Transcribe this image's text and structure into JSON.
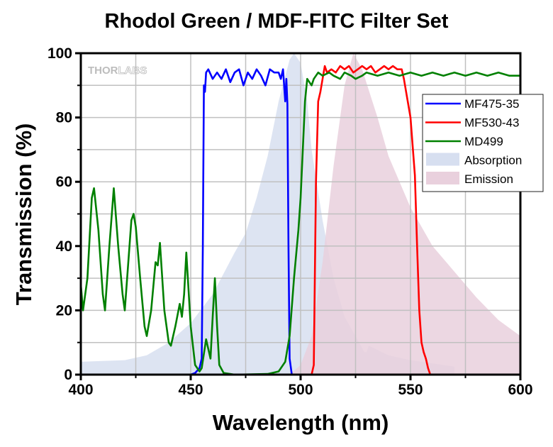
{
  "chart_data": {
    "type": "line",
    "title": "Rhodol Green / MDF-FITC Filter Set",
    "xlabel": "Wavelength (nm)",
    "ylabel": "Transmission (%)",
    "xlim": [
      400,
      600
    ],
    "ylim": [
      0,
      100
    ],
    "xticks": [
      400,
      450,
      500,
      550,
      600
    ],
    "yticks": [
      0,
      20,
      40,
      60,
      80,
      100
    ],
    "grid": true,
    "legend_position": "right",
    "watermark": [
      "THOR",
      "LABS"
    ],
    "series": [
      {
        "name": "Absorption",
        "kind": "area",
        "color": "#d7dff0",
        "x": [
          400,
          420,
          430,
          440,
          450,
          460,
          470,
          475,
          480,
          485,
          490,
          495,
          497,
          500,
          503,
          505,
          510,
          515,
          520,
          525,
          529,
          530,
          531,
          540,
          550,
          560,
          570
        ],
        "y": [
          4,
          4.5,
          6,
          10,
          16,
          25,
          38,
          44,
          55,
          68,
          85,
          98,
          100,
          97,
          85,
          70,
          48,
          30,
          18,
          12,
          7,
          7,
          9,
          6,
          4.5,
          3.5,
          2.5
        ]
      },
      {
        "name": "Emission",
        "kind": "area",
        "color": "#e9d0dd",
        "x": [
          495,
          500,
          505,
          510,
          515,
          520,
          524,
          528,
          535,
          540,
          550,
          560,
          570,
          580,
          590,
          600
        ],
        "y": [
          0,
          3,
          12,
          35,
          65,
          90,
          100,
          95,
          80,
          68,
          52,
          40,
          32,
          24,
          17,
          12
        ]
      },
      {
        "name": "MF475-35",
        "kind": "line",
        "color": "#0000ff",
        "x": [
          400,
          450,
          452,
          454,
          455,
          455.5,
          456,
          456.5,
          457,
          458,
          460,
          462,
          464,
          466,
          468,
          470,
          472,
          474,
          476,
          478,
          480,
          482,
          484,
          486,
          488,
          490,
          491,
          492,
          493,
          493.5,
          494,
          494.5,
          495,
          496,
          600
        ],
        "y": [
          0,
          0,
          0.5,
          2,
          5,
          40,
          90,
          88,
          94,
          95,
          92,
          94,
          92,
          95,
          91,
          94,
          95,
          90,
          94,
          92,
          95,
          93,
          90,
          95,
          94,
          94,
          92,
          95,
          85,
          92,
          84,
          40,
          5,
          0,
          0
        ]
      },
      {
        "name": "MF530-43",
        "kind": "line",
        "color": "#ff0000",
        "x": [
          400,
          505,
          506,
          507,
          508,
          509,
          510,
          511,
          512,
          514,
          516,
          518,
          520,
          522,
          524,
          526,
          528,
          530,
          532,
          534,
          536,
          538,
          540,
          542,
          544,
          546,
          547,
          548,
          550,
          552,
          553,
          554,
          555,
          556,
          557,
          558,
          559,
          600
        ],
        "y": [
          0,
          0,
          3,
          60,
          85,
          88,
          92,
          96,
          94,
          95,
          94,
          96,
          95,
          96,
          94,
          95,
          96,
          95,
          96,
          94,
          95,
          96,
          95,
          96,
          95,
          95,
          92,
          88,
          80,
          62,
          40,
          20,
          10,
          7,
          5,
          2,
          0,
          0
        ]
      },
      {
        "name": "MD499",
        "kind": "line",
        "color": "#008000",
        "x": [
          400,
          401,
          403,
          405,
          406,
          408,
          410,
          411,
          413,
          415,
          417,
          419,
          420,
          423,
          424,
          425,
          427,
          429,
          430,
          432,
          434,
          435,
          436,
          438,
          440,
          441,
          443,
          445,
          446,
          447,
          448,
          450,
          452,
          454,
          455,
          457,
          458,
          459,
          460,
          461,
          462,
          463,
          465,
          470,
          485,
          490,
          493,
          495,
          497,
          499,
          500,
          501,
          502,
          503,
          504,
          505,
          506,
          508,
          510,
          513,
          515,
          518,
          520,
          523,
          525,
          528,
          530,
          535,
          540,
          545,
          550,
          555,
          560,
          565,
          570,
          575,
          580,
          585,
          590,
          595,
          600
        ],
        "y": [
          28,
          20,
          30,
          55,
          58,
          45,
          25,
          20,
          40,
          58,
          40,
          25,
          20,
          48,
          50,
          46,
          30,
          15,
          12,
          20,
          35,
          34,
          41,
          20,
          10,
          9,
          15,
          22,
          18,
          25,
          38,
          15,
          3,
          1,
          2,
          11,
          8,
          5,
          18,
          30,
          15,
          3,
          0.5,
          0,
          0.2,
          1,
          4,
          12,
          30,
          45,
          55,
          70,
          85,
          92,
          91,
          90,
          92,
          94,
          93,
          94,
          93,
          92,
          94,
          93,
          92,
          93,
          94,
          93,
          94,
          93,
          94,
          93,
          94,
          93,
          94,
          93,
          94,
          93,
          94,
          93,
          93
        ]
      }
    ]
  }
}
